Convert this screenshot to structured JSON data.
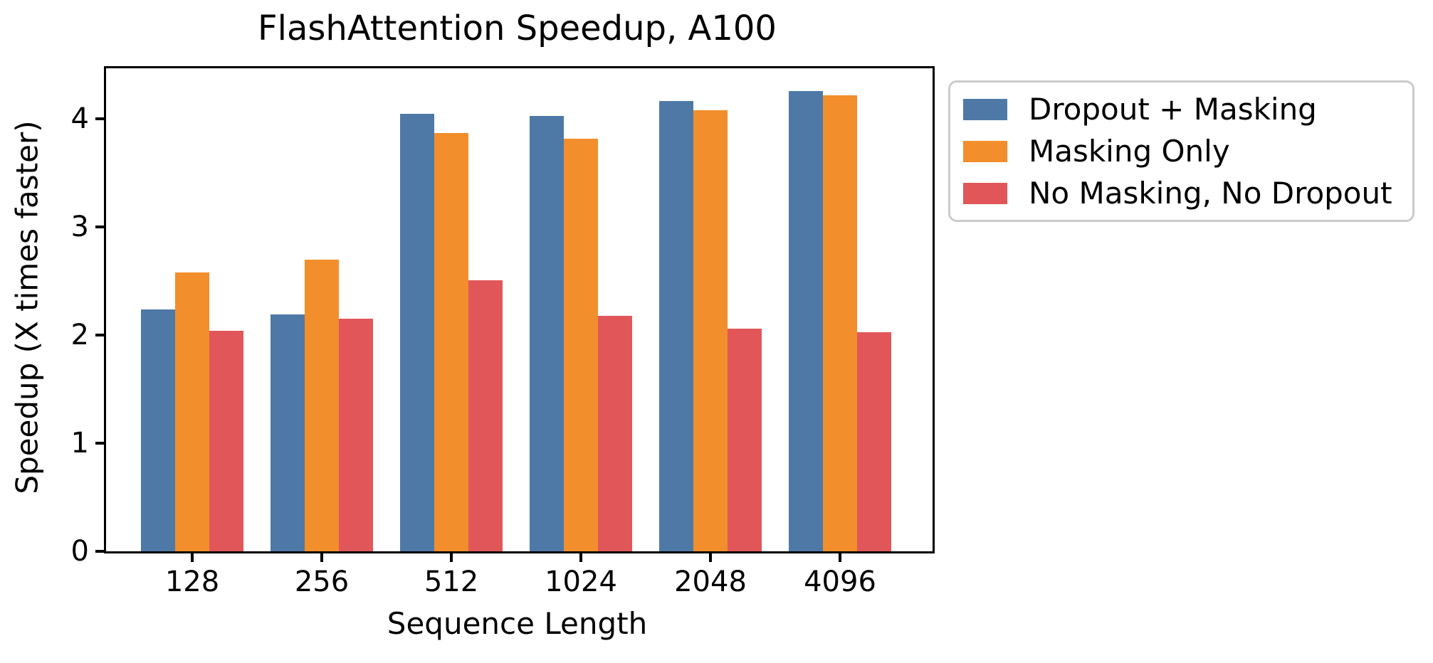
{
  "chart_data": {
    "type": "bar",
    "title": "FlashAttention Speedup, A100",
    "xlabel": "Sequence Length",
    "ylabel": "Speedup (X times faster)",
    "categories": [
      "128",
      "256",
      "512",
      "1024",
      "2048",
      "4096"
    ],
    "series": [
      {
        "name": "Dropout + Masking",
        "color": "#4E79A7",
        "values": [
          2.24,
          2.19,
          4.05,
          4.03,
          4.17,
          4.26
        ]
      },
      {
        "name": "Masking Only",
        "color": "#F28E2B",
        "values": [
          2.58,
          2.7,
          3.87,
          3.82,
          4.08,
          4.22
        ]
      },
      {
        "name": "No Masking, No Dropout",
        "color": "#E15759",
        "values": [
          2.04,
          2.15,
          2.51,
          2.18,
          2.06,
          2.03
        ]
      }
    ],
    "yticks": [
      0,
      1,
      2,
      3,
      4
    ],
    "ylim": [
      0,
      4.47
    ],
    "grid": false,
    "legend_position": "outside-upper-right",
    "axis_color": "#000000",
    "legend_border_color": "#cbcbcb"
  }
}
